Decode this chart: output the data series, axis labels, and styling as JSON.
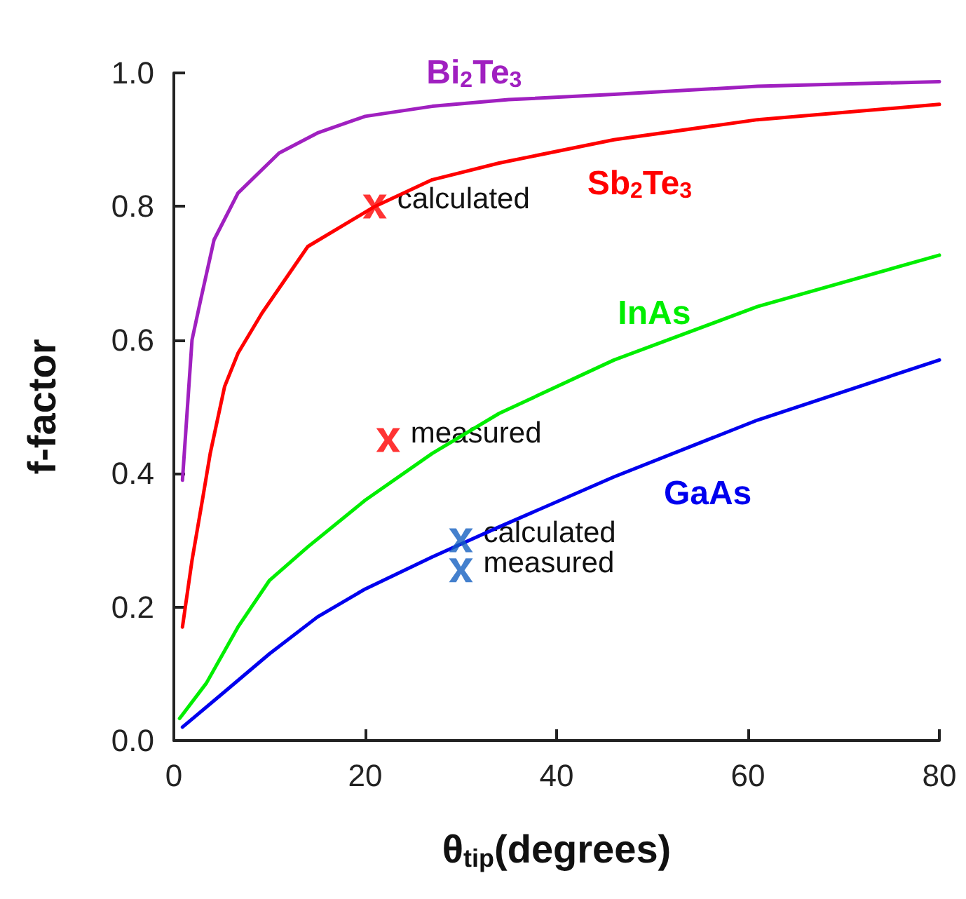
{
  "chart_data": {
    "type": "line",
    "xlabel": "θ$_{tip}$(degrees)",
    "ylabel": "f-factor",
    "xlim": [
      0,
      80
    ],
    "ylim": [
      0,
      1
    ],
    "xticks": [
      0,
      20,
      40,
      60,
      80
    ],
    "yticks": [
      {
        "value": 0,
        "label": "0.0"
      },
      0.2,
      0.4,
      0.6,
      0.8,
      {
        "value": 1,
        "label": "1.0"
      }
    ],
    "grid": false,
    "line_style": "solid",
    "marker": "none",
    "series": [
      {
        "name": "Bi$_{2}$Te$_{3}$",
        "color": "#a020c0",
        "x": [
          0.9,
          1.9,
          2.8,
          4.2,
          6.7,
          11,
          15,
          20,
          27,
          35,
          46,
          61,
          80
        ],
        "values": [
          0.39,
          0.6,
          0.66,
          0.75,
          0.82,
          0.88,
          0.91,
          0.935,
          0.95,
          0.96,
          0.968,
          0.98,
          0.987
        ]
      },
      {
        "name": "Sb$_{2}$Te$_{3}$",
        "color": "#ff0000",
        "x": [
          0.9,
          1.9,
          3.1,
          3.8,
          5.3,
          6.7,
          9.2,
          14,
          21,
          27,
          34,
          46,
          61,
          80
        ],
        "values": [
          0.17,
          0.27,
          0.37,
          0.43,
          0.53,
          0.58,
          0.64,
          0.74,
          0.8,
          0.84,
          0.865,
          0.9,
          0.93,
          0.953
        ]
      },
      {
        "name": "InAs",
        "color": "#00ee00",
        "x": [
          0.6,
          3.4,
          6.7,
          10,
          14,
          20,
          27,
          34,
          46,
          61,
          80
        ],
        "values": [
          0.033,
          0.086,
          0.17,
          0.24,
          0.29,
          0.36,
          0.43,
          0.49,
          0.57,
          0.65,
          0.727
        ]
      },
      {
        "name": "GaAs",
        "color": "#0000ee",
        "x": [
          0.9,
          5.3,
          10,
          15,
          20,
          27,
          34,
          46,
          61,
          80
        ],
        "values": [
          0.02,
          0.073,
          0.13,
          0.185,
          0.227,
          0.275,
          0.32,
          0.395,
          0.48,
          0.57
        ]
      },
      {
        "type": "scatter",
        "marker": "cross",
        "color": "#ff0000",
        "x": [
          21,
          22.4
        ],
        "values": [
          0.8,
          0.45
        ]
      },
      {
        "type": "scatter",
        "marker": "cross",
        "color": "#1560c0",
        "x": [
          30,
          30
        ],
        "values": [
          0.3,
          0.255
        ]
      }
    ],
    "annotations": [
      {
        "text": "calculated",
        "x": 21,
        "y": 0.8
      },
      {
        "text": "measured",
        "x": 22.4,
        "y": 0.45
      },
      {
        "text": "calculated",
        "x": 30,
        "y": 0.3
      },
      {
        "text": "measured",
        "x": 30,
        "y": 0.255
      }
    ]
  }
}
